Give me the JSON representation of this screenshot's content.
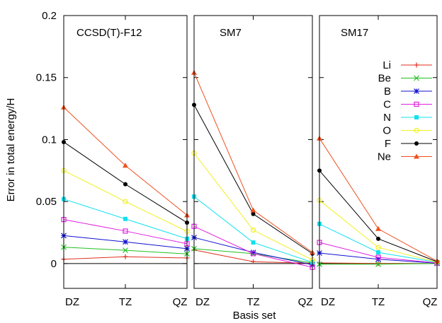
{
  "chart_data": {
    "type": "line",
    "ylabel": "Error in total energy/H",
    "xlabel": "Basis set",
    "ylim": [
      -0.02,
      0.2
    ],
    "yticks": [
      "0",
      "0.05",
      "0.1",
      "0.15",
      "0.2"
    ],
    "ytick_values": [
      0,
      0.05,
      0.1,
      0.15,
      0.2
    ],
    "categories": [
      "DZ",
      "TZ",
      "QZ"
    ],
    "grid": false,
    "legend_position": "top-right",
    "series_styles": [
      {
        "name": "Li",
        "color": "#e0301e",
        "marker": "plus"
      },
      {
        "name": "Be",
        "color": "#20c020",
        "marker": "cross"
      },
      {
        "name": "B",
        "color": "#1010d0",
        "marker": "star"
      },
      {
        "name": "C",
        "color": "#e020e0",
        "marker": "square-open"
      },
      {
        "name": "N",
        "color": "#10e0f0",
        "marker": "square-filled"
      },
      {
        "name": "O",
        "color": "#f0f020",
        "marker": "circle-open"
      },
      {
        "name": "F",
        "color": "#000000",
        "marker": "circle-filled"
      },
      {
        "name": "Ne",
        "color": "#f05020",
        "marker": "triangle-filled"
      }
    ],
    "panels": [
      {
        "title": "CCSD(T)-F12",
        "series": [
          {
            "name": "Li",
            "values": [
              0.0035,
              0.0055,
              0.0045
            ]
          },
          {
            "name": "Be",
            "values": [
              0.0132,
              0.0107,
              0.0078
            ]
          },
          {
            "name": "B",
            "values": [
              0.0225,
              0.0175,
              0.012
            ]
          },
          {
            "name": "C",
            "values": [
              0.0355,
              0.0262,
              0.016
            ]
          },
          {
            "name": "N",
            "values": [
              0.052,
              0.036,
              0.02
            ]
          },
          {
            "name": "O",
            "values": [
              0.075,
              0.05,
              0.026
            ]
          },
          {
            "name": "F",
            "values": [
              0.098,
              0.064,
              0.033
            ]
          },
          {
            "name": "Ne",
            "values": [
              0.126,
              0.079,
              0.039
            ]
          }
        ]
      },
      {
        "title": "SM7",
        "series": [
          {
            "name": "Li",
            "values": [
              0.011,
              0.0015,
              0.0002
            ]
          },
          {
            "name": "Be",
            "values": [
              0.012,
              0.008,
              0.0005
            ]
          },
          {
            "name": "B",
            "values": [
              0.021,
              0.009,
              -0.001
            ]
          },
          {
            "name": "C",
            "values": [
              0.03,
              0.008,
              -0.003
            ]
          },
          {
            "name": "N",
            "values": [
              0.054,
              0.017,
              0.001
            ]
          },
          {
            "name": "O",
            "values": [
              0.089,
              0.027,
              0.003
            ]
          },
          {
            "name": "F",
            "values": [
              0.128,
              0.04,
              0.008
            ]
          },
          {
            "name": "Ne",
            "values": [
              0.154,
              0.043,
              0.009
            ]
          }
        ]
      },
      {
        "title": "SM17",
        "series": [
          {
            "name": "Li",
            "values": [
              0.0005,
              0.0001,
              0.0
            ]
          },
          {
            "name": "Be",
            "values": [
              -0.0005,
              -0.0005,
              0.0
            ]
          },
          {
            "name": "B",
            "values": [
              0.0085,
              0.0035,
              0.0003
            ]
          },
          {
            "name": "C",
            "values": [
              0.017,
              0.005,
              0.0005
            ]
          },
          {
            "name": "N",
            "values": [
              0.032,
              0.009,
              0.001
            ]
          },
          {
            "name": "O",
            "values": [
              0.051,
              0.013,
              0.0012
            ]
          },
          {
            "name": "F",
            "values": [
              0.075,
              0.02,
              0.0015
            ]
          },
          {
            "name": "Ne",
            "values": [
              0.101,
              0.028,
              0.002
            ]
          }
        ]
      }
    ]
  }
}
